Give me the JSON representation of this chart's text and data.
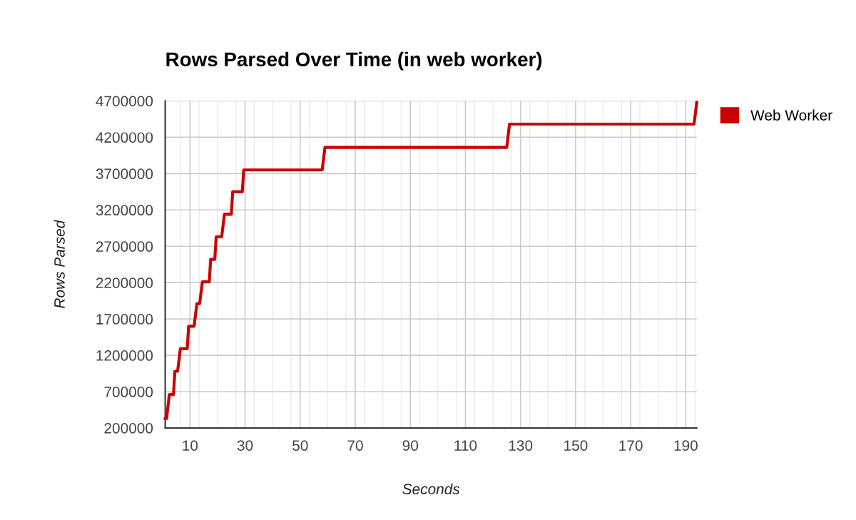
{
  "chart_data": {
    "type": "line",
    "title": "Rows Parsed Over Time (in web worker)",
    "xlabel": "Seconds",
    "ylabel": "Rows Parsed",
    "xlim": [
      1,
      194
    ],
    "xticks": [
      10,
      30,
      50,
      70,
      90,
      110,
      130,
      150,
      170,
      190
    ],
    "ylim": [
      200000,
      4700000
    ],
    "yticks": [
      200000,
      700000,
      1200000,
      1700000,
      2200000,
      2700000,
      3200000,
      3700000,
      4200000,
      4700000
    ],
    "grid": true,
    "legend": "top right",
    "marker": "none",
    "line_style": "solid",
    "series": [
      {
        "name": "Web Worker",
        "color": "#cc0000",
        "x": [
          1,
          1.5,
          2.5,
          4,
          4.5,
          5.5,
          6.5,
          9,
          9.5,
          11.5,
          12.5,
          13.5,
          14.5,
          17,
          17.5,
          19,
          19.5,
          21.5,
          22.5,
          25,
          25.5,
          29,
          29.5,
          58,
          59,
          125,
          126,
          193,
          194
        ],
        "values": [
          330000,
          330000,
          660000,
          660000,
          980000,
          980000,
          1290000,
          1290000,
          1600000,
          1600000,
          1910000,
          1910000,
          2210000,
          2210000,
          2520000,
          2520000,
          2830000,
          2830000,
          3140000,
          3140000,
          3450000,
          3450000,
          3750000,
          3750000,
          4060000,
          4060000,
          4380000,
          4380000,
          4680000
        ]
      }
    ]
  }
}
